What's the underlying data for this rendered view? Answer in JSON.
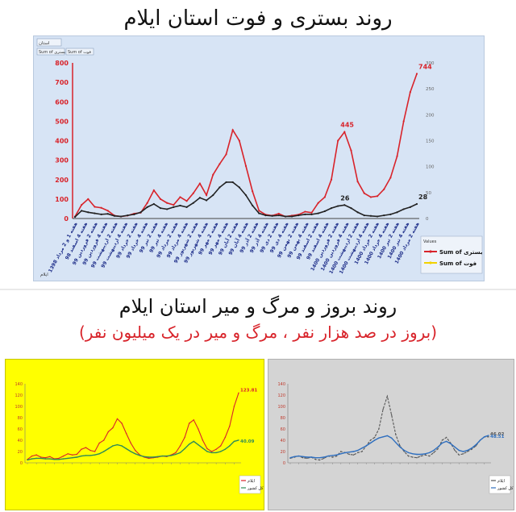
{
  "top": {
    "title": "روند بستری و فوت استان ایلام",
    "filter_label": "استان",
    "field_buttons": [
      "Sum of بستری",
      "Sum of فوت"
    ],
    "legend_title": "Values",
    "legend_items": [
      "Sum of بستری",
      "Sum of فوت"
    ],
    "footer_label": "ایلام"
  },
  "bottom": {
    "title": "روند بروز و مرگ و میر استان ایلام",
    "subtitle": "(بروز در صد هزار نفر ، مرگ و میر در یک میلیون نفر)",
    "left_legend": [
      "ایلام",
      "کل کشور"
    ],
    "right_legend": [
      "ایلام",
      "کل کشور"
    ]
  },
  "colors": {
    "red": "#d8232a",
    "black": "#222222",
    "green": "#2e8b57",
    "blue": "#2f6fbf",
    "gray_line": "#555555",
    "yellow_line": "#e6c800"
  },
  "chart_data": [
    {
      "type": "line",
      "title": "روند بستری و فوت استان ایلام",
      "x_tick_labels": [
        "هفته 1 و 2 مرداد 1398",
        "هفته 4 اسفند 98",
        "هفته 2 فروردین 99",
        "هفته 4 فروردین 99",
        "هفته 2 اردیبهشت 99",
        "هفته 4 اردیبهشت 99",
        "هفته 2 خرداد 99",
        "هفته 4 خرداد 99",
        "هفته 2 تیر 99",
        "هفته 4 تیر 99",
        "هفته 2 مرداد 99",
        "هفته 4 مرداد 99",
        "هفته 2 شهریور 99",
        "هفته 4 شهریور 99",
        "هفته 2 مهر 99",
        "هفته 4 مهر 99",
        "هفته 2 آبان 99",
        "هفته 4 آبان 99",
        "هفته 2 آذر 99",
        "هفته 4 آذر 99",
        "هفته 2 دی 99",
        "هفته 4 دی 99",
        "هفته 2 بهمن 99",
        "هفته 4 بهمن 99",
        "هفته 2 اسفند 99",
        "هفته 4 اسفند 99",
        "هفته 2 فروردین 1400",
        "هفته 4 فروردین 1400",
        "هفته 2 اردیبهشت 1400",
        "هفته 4 اردیبهشت 1400",
        "هفته 2 خرداد 1400",
        "هفته 4 خرداد 1400",
        "هفته 2 تیر 1400",
        "هفته 4 تیر 1400",
        "هفته 2 مرداد 1400"
      ],
      "y_left": {
        "lim": [
          0,
          800
        ],
        "ticks": [
          0,
          100,
          200,
          300,
          400,
          500,
          600,
          700,
          800
        ]
      },
      "y_right": {
        "lim": [
          0,
          300
        ],
        "ticks": [
          0,
          50,
          100,
          150,
          200,
          250,
          300
        ]
      },
      "series": [
        {
          "name": "Sum of بستری",
          "axis": "left",
          "values": [
            10,
            70,
            100,
            60,
            55,
            40,
            15,
            10,
            15,
            25,
            30,
            80,
            145,
            100,
            80,
            70,
            110,
            90,
            130,
            180,
            120,
            225,
            280,
            330,
            455,
            400,
            270,
            140,
            40,
            20,
            15,
            25,
            10,
            15,
            20,
            35,
            30,
            80,
            110,
            200,
            400,
            445,
            350,
            190,
            130,
            110,
            115,
            150,
            210,
            320,
            500,
            650,
            744
          ],
          "labels": [
            {
              "index": 41,
              "text": "445"
            },
            {
              "index": 52,
              "text": "744"
            }
          ]
        },
        {
          "name": "Sum of فوت",
          "axis": "right",
          "values": [
            3,
            15,
            12,
            10,
            8,
            9,
            5,
            4,
            6,
            8,
            12,
            22,
            28,
            20,
            18,
            22,
            25,
            22,
            30,
            40,
            35,
            45,
            60,
            70,
            70,
            60,
            45,
            25,
            10,
            6,
            5,
            6,
            4,
            4,
            6,
            8,
            8,
            10,
            14,
            20,
            24,
            26,
            20,
            12,
            6,
            5,
            4,
            6,
            8,
            12,
            18,
            22,
            28
          ],
          "labels": [
            {
              "index": 41,
              "text": "26"
            },
            {
              "index": 52,
              "text": "28"
            }
          ]
        }
      ]
    },
    {
      "type": "line",
      "y_ticks": [
        0,
        20,
        40,
        60,
        80,
        100,
        120,
        140
      ],
      "ylim": [
        0,
        140
      ],
      "series": [
        {
          "name": "ایلام",
          "values": [
            6,
            12,
            14,
            10,
            9,
            11,
            7,
            8,
            12,
            16,
            14,
            15,
            24,
            27,
            22,
            20,
            35,
            40,
            55,
            62,
            78,
            70,
            52,
            35,
            22,
            14,
            10,
            8,
            9,
            10,
            12,
            11,
            14,
            18,
            30,
            45,
            70,
            76,
            60,
            40,
            25,
            20,
            24,
            30,
            45,
            65,
            100,
            123.81
          ],
          "labels": [
            {
              "index": 47,
              "text": "123.81"
            }
          ]
        },
        {
          "name": "کل کشور",
          "values": [
            5,
            7,
            8,
            8,
            7,
            7,
            6,
            6,
            7,
            8,
            9,
            10,
            12,
            13,
            13,
            14,
            16,
            20,
            25,
            30,
            32,
            30,
            25,
            20,
            16,
            13,
            11,
            10,
            10,
            11,
            12,
            12,
            13,
            15,
            18,
            25,
            33,
            38,
            32,
            26,
            20,
            18,
            18,
            20,
            24,
            30,
            38,
            40.09
          ],
          "labels": [
            {
              "index": 47,
              "text": "40.09"
            }
          ]
        }
      ]
    },
    {
      "type": "line",
      "y_ticks": [
        0,
        20,
        40,
        60,
        80,
        100,
        120,
        140
      ],
      "ylim": [
        0,
        140
      ],
      "series": [
        {
          "name": "ایلام",
          "values": [
            8,
            10,
            12,
            9,
            8,
            10,
            6,
            5,
            8,
            12,
            10,
            12,
            20,
            18,
            15,
            14,
            18,
            20,
            30,
            40,
            45,
            60,
            95,
            118,
            85,
            50,
            30,
            20,
            12,
            10,
            9,
            12,
            14,
            12,
            18,
            25,
            40,
            45,
            35,
            22,
            14,
            16,
            20,
            24,
            30,
            40,
            46,
            46.02
          ],
          "labels": [
            {
              "index": 47,
              "text": "46.02"
            }
          ]
        },
        {
          "name": "کل کشور",
          "values": [
            9,
            11,
            12,
            11,
            10,
            10,
            9,
            9,
            10,
            12,
            13,
            14,
            16,
            18,
            19,
            20,
            22,
            26,
            30,
            35,
            40,
            44,
            46,
            48,
            44,
            36,
            28,
            22,
            18,
            16,
            15,
            15,
            16,
            18,
            22,
            28,
            35,
            38,
            34,
            28,
            22,
            20,
            22,
            26,
            32,
            40,
            46,
            48.51
          ],
          "labels": [
            {
              "index": 47,
              "text": "48.51"
            }
          ]
        }
      ]
    }
  ]
}
